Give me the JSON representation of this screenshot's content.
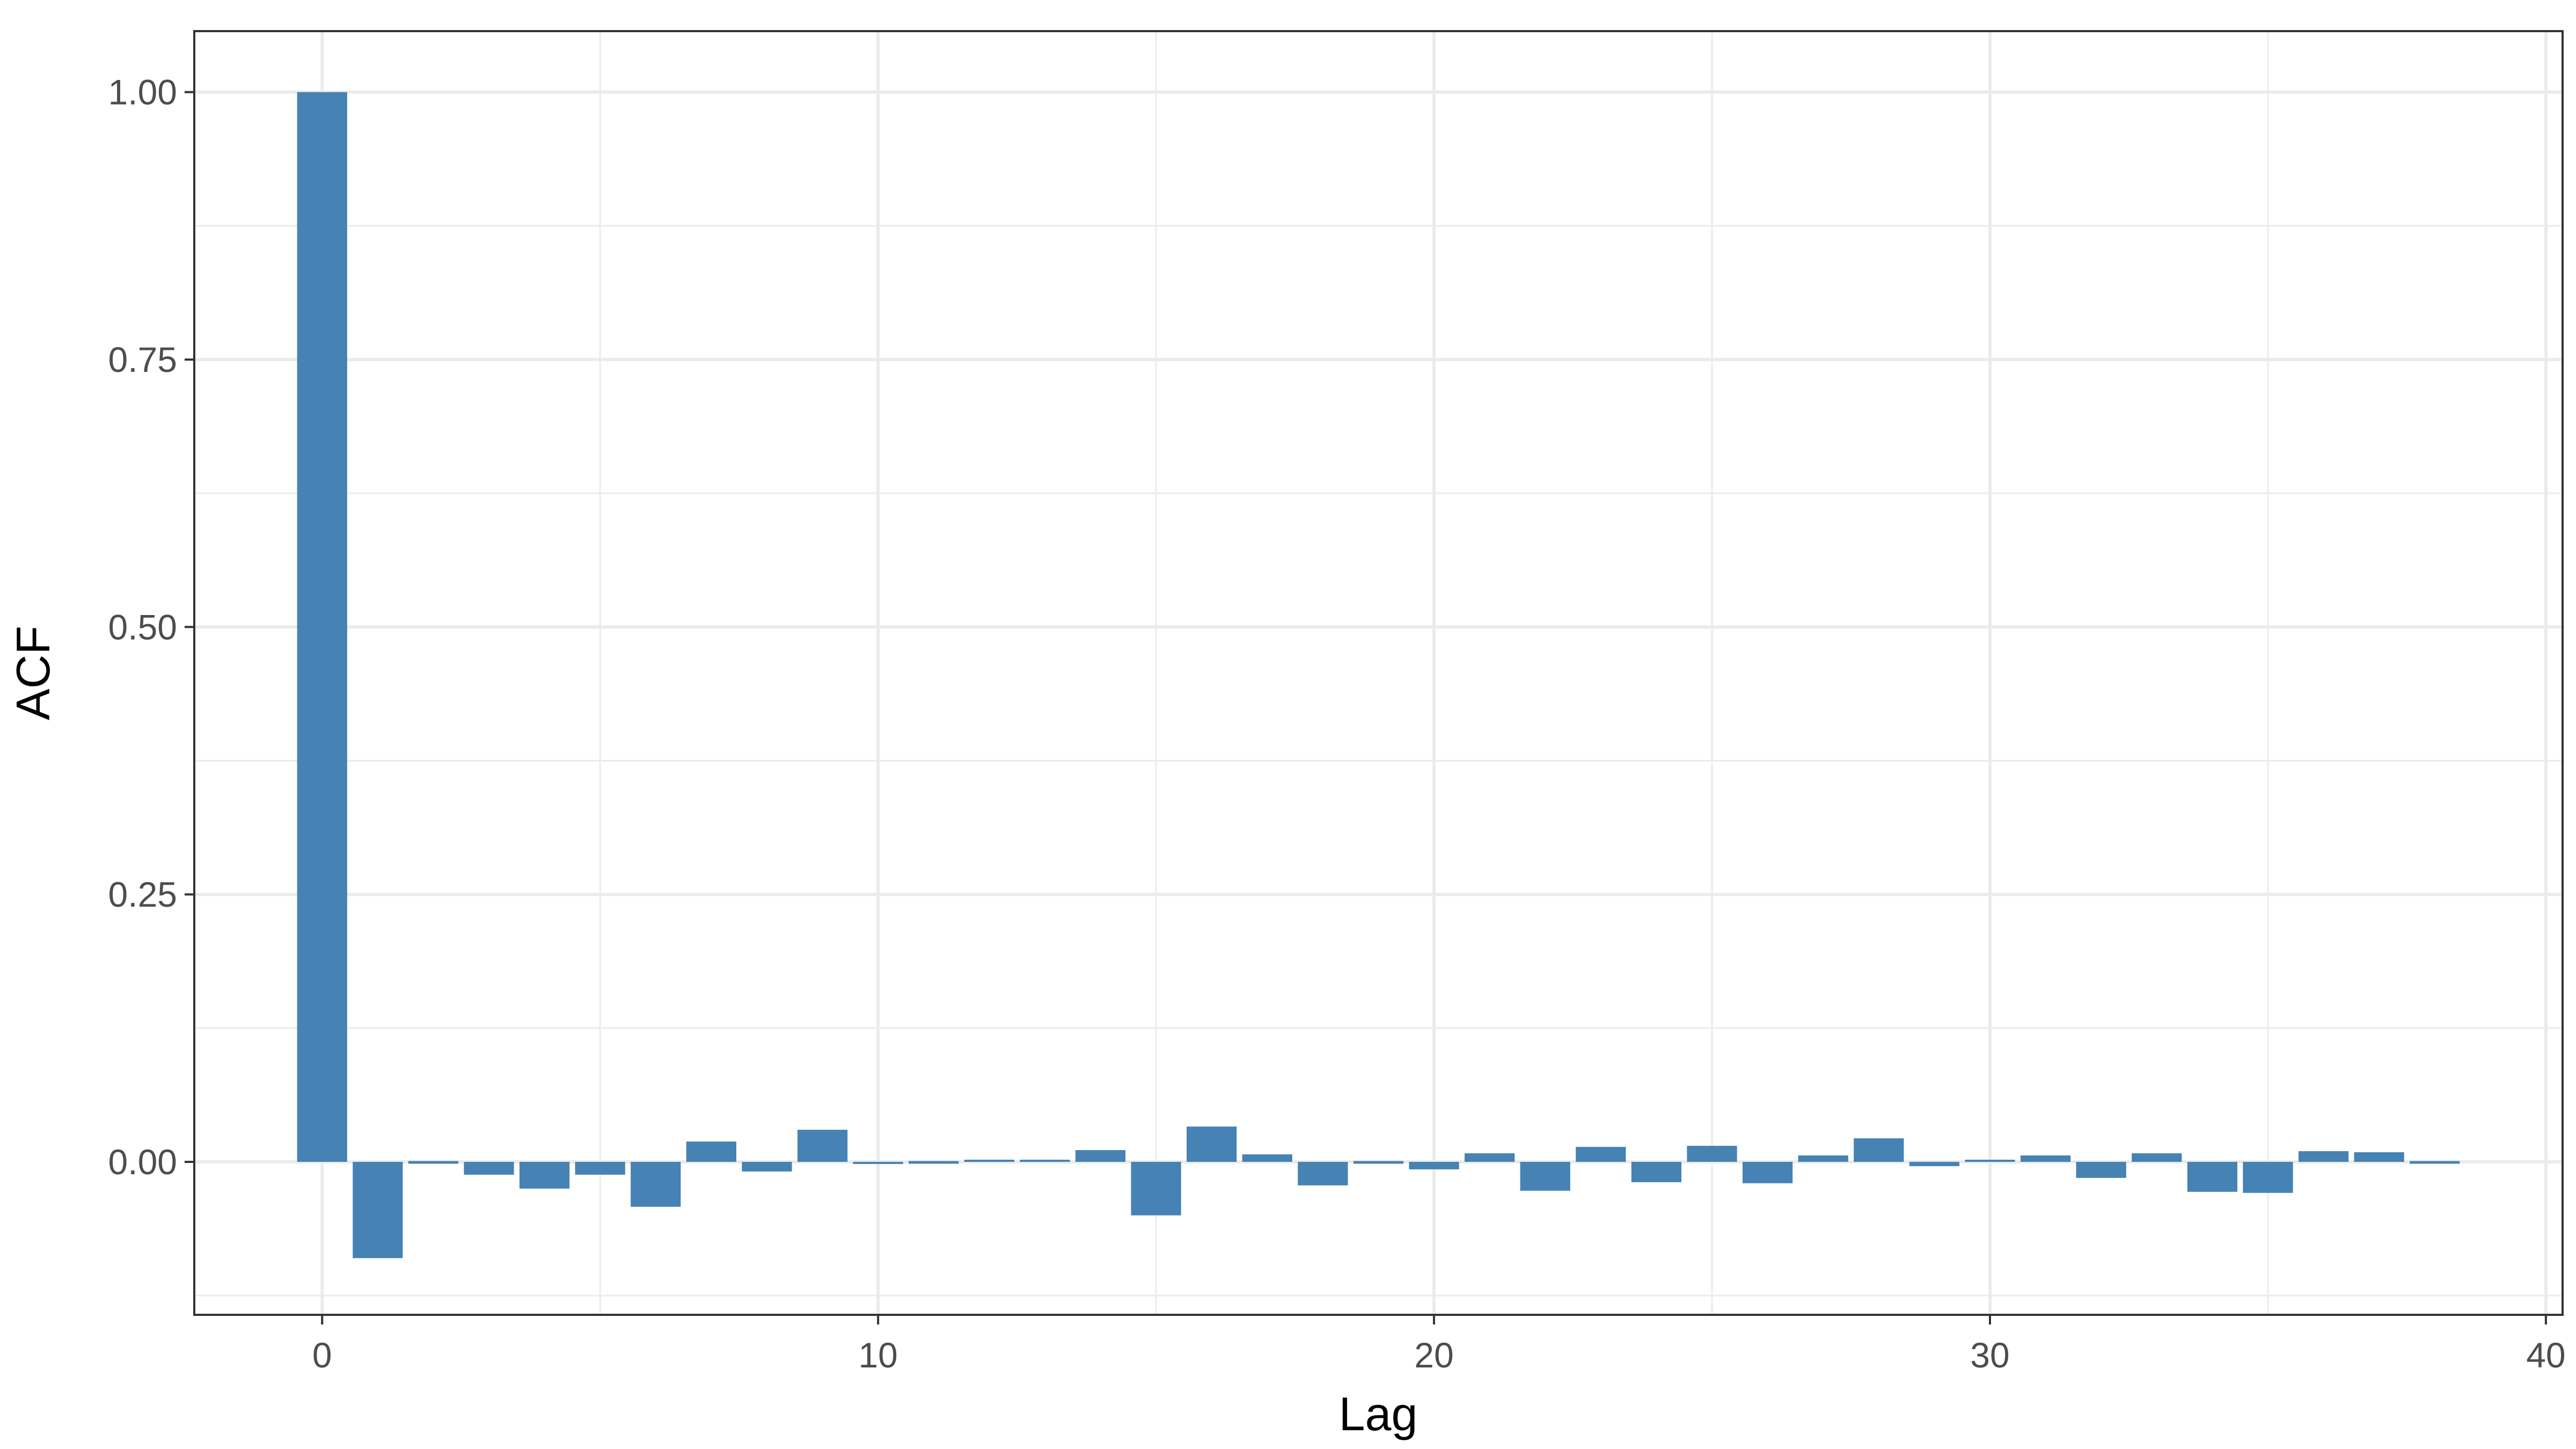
{
  "chart_data": {
    "type": "bar",
    "title": "",
    "xlabel": "Lag",
    "ylabel": "ACF",
    "xlim": [
      -2.3,
      40.3
    ],
    "ylim": [
      -0.143,
      1.057
    ],
    "x_ticks": [
      0,
      10,
      20,
      30,
      40
    ],
    "x_tick_labels": [
      "0",
      "10",
      "20",
      "30",
      "40"
    ],
    "y_ticks": [
      0.0,
      0.25,
      0.5,
      0.75,
      1.0
    ],
    "y_tick_labels": [
      "0.00",
      "0.25",
      "0.50",
      "0.75",
      "1.00"
    ],
    "y_minor_gridlines": [
      -0.125,
      0.125,
      0.375,
      0.625,
      0.875
    ],
    "x_minor_gridlines": [
      5,
      15,
      25,
      35
    ],
    "grid": true,
    "legend": "none",
    "bar_color": "#4682b4",
    "x": [
      0,
      1,
      2,
      3,
      4,
      5,
      6,
      7,
      8,
      9,
      10,
      11,
      12,
      13,
      14,
      15,
      16,
      17,
      18,
      19,
      20,
      21,
      22,
      23,
      24,
      25,
      26,
      27,
      28,
      29,
      30,
      31,
      32,
      33,
      34,
      35,
      36,
      37,
      38
    ],
    "values": [
      1.0,
      -0.09,
      -0.001,
      -0.012,
      -0.025,
      -0.012,
      -0.042,
      0.019,
      -0.009,
      0.03,
      -0.002,
      -0.001,
      0.002,
      0.002,
      0.011,
      -0.05,
      0.033,
      0.007,
      -0.022,
      -0.001,
      -0.007,
      0.008,
      -0.027,
      0.014,
      -0.019,
      0.015,
      -0.02,
      0.006,
      0.022,
      -0.004,
      0.002,
      0.006,
      -0.015,
      0.008,
      -0.028,
      -0.029,
      0.01,
      0.009,
      -0.001
    ]
  }
}
